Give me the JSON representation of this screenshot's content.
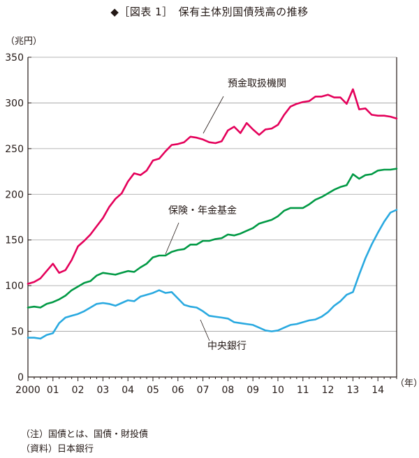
{
  "title": "◆［図表 1］　保有主体別国債残高の推移",
  "notes": [
    "（注）国債とは、国債・財投債",
    "（資料）日本銀行"
  ],
  "chart_data": {
    "type": "line",
    "ylabel": "（兆円）",
    "xlabel": "（年）",
    "ylim": [
      0,
      350
    ],
    "yticks": [
      0,
      50,
      100,
      150,
      200,
      250,
      300,
      350
    ],
    "xlim": [
      2000,
      2014.75
    ],
    "xticks": [
      {
        "value": 2000,
        "label": "2000"
      },
      {
        "value": 2001,
        "label": "01"
      },
      {
        "value": 2002,
        "label": "02"
      },
      {
        "value": 2003,
        "label": "03"
      },
      {
        "value": 2004,
        "label": "04"
      },
      {
        "value": 2005,
        "label": "05"
      },
      {
        "value": 2006,
        "label": "06"
      },
      {
        "value": 2007,
        "label": "07"
      },
      {
        "value": 2008,
        "label": "08"
      },
      {
        "value": 2009,
        "label": "09"
      },
      {
        "value": 2010,
        "label": "10"
      },
      {
        "value": 2011,
        "label": "11"
      },
      {
        "value": 2012,
        "label": "12"
      },
      {
        "value": 2013,
        "label": "13"
      },
      {
        "value": 2014,
        "label": "14"
      }
    ],
    "grid": "horizontal",
    "series": [
      {
        "name": "預金取扱機関",
        "color": "#e4005a",
        "label_style": "leader",
        "x": [
          2000,
          2000.25,
          2000.5,
          2000.75,
          2001,
          2001.25,
          2001.5,
          2001.75,
          2002,
          2002.25,
          2002.5,
          2002.75,
          2003,
          2003.25,
          2003.5,
          2003.75,
          2004,
          2004.25,
          2004.5,
          2004.75,
          2005,
          2005.25,
          2005.5,
          2005.75,
          2006,
          2006.25,
          2006.5,
          2006.75,
          2007,
          2007.25,
          2007.5,
          2007.75,
          2008,
          2008.25,
          2008.5,
          2008.75,
          2009,
          2009.25,
          2009.5,
          2009.75,
          2010,
          2010.25,
          2010.5,
          2010.75,
          2011,
          2011.25,
          2011.5,
          2011.75,
          2012,
          2012.25,
          2012.5,
          2012.75,
          2013,
          2013.25,
          2013.5,
          2013.75,
          2014,
          2014.25,
          2014.5,
          2014.75
        ],
        "values": [
          102,
          104,
          108,
          116,
          124,
          114,
          117,
          128,
          143,
          149,
          156,
          165,
          174,
          186,
          195,
          201,
          214,
          223,
          221,
          226,
          237,
          239,
          247,
          254,
          255,
          257,
          263,
          262,
          260,
          257,
          256,
          258,
          270,
          274,
          267,
          278,
          271,
          265,
          271,
          272,
          276,
          287,
          296,
          299,
          301,
          302,
          307,
          307,
          309,
          306,
          306,
          299,
          315,
          293,
          294,
          287,
          286,
          286,
          285,
          283
        ]
      },
      {
        "name": "保険・年金基金",
        "color": "#009944",
        "label_style": "leader",
        "x": [
          2000,
          2000.25,
          2000.5,
          2000.75,
          2001,
          2001.25,
          2001.5,
          2001.75,
          2002,
          2002.25,
          2002.5,
          2002.75,
          2003,
          2003.25,
          2003.5,
          2003.75,
          2004,
          2004.25,
          2004.5,
          2004.75,
          2005,
          2005.25,
          2005.5,
          2005.75,
          2006,
          2006.25,
          2006.5,
          2006.75,
          2007,
          2007.25,
          2007.5,
          2007.75,
          2008,
          2008.25,
          2008.5,
          2008.75,
          2009,
          2009.25,
          2009.5,
          2009.75,
          2010,
          2010.25,
          2010.5,
          2010.75,
          2011,
          2011.25,
          2011.5,
          2011.75,
          2012,
          2012.25,
          2012.5,
          2012.75,
          2013,
          2013.25,
          2013.5,
          2013.75,
          2014,
          2014.25,
          2014.5,
          2014.75
        ],
        "values": [
          76,
          77,
          76,
          80,
          82,
          85,
          89,
          95,
          99,
          103,
          105,
          111,
          114,
          113,
          112,
          114,
          116,
          115,
          120,
          124,
          131,
          133,
          133,
          137,
          139,
          140,
          145,
          145,
          149,
          149,
          151,
          152,
          156,
          155,
          157,
          160,
          163,
          168,
          170,
          172,
          176,
          182,
          185,
          185,
          185,
          189,
          194,
          197,
          201,
          205,
          208,
          210,
          222,
          217,
          221,
          222,
          226,
          227,
          227,
          228
        ]
      },
      {
        "name": "中央銀行",
        "color": "#29a9e0",
        "label_style": "leader",
        "x": [
          2000,
          2000.25,
          2000.5,
          2000.75,
          2001,
          2001.25,
          2001.5,
          2001.75,
          2002,
          2002.25,
          2002.5,
          2002.75,
          2003,
          2003.25,
          2003.5,
          2003.75,
          2004,
          2004.25,
          2004.5,
          2004.75,
          2005,
          2005.25,
          2005.5,
          2005.75,
          2006,
          2006.25,
          2006.5,
          2006.75,
          2007,
          2007.25,
          2007.5,
          2007.75,
          2008,
          2008.25,
          2008.5,
          2008.75,
          2009,
          2009.25,
          2009.5,
          2009.75,
          2010,
          2010.25,
          2010.5,
          2010.75,
          2011,
          2011.25,
          2011.5,
          2011.75,
          2012,
          2012.25,
          2012.5,
          2012.75,
          2013,
          2013.25,
          2013.5,
          2013.75,
          2014,
          2014.25,
          2014.5,
          2014.75
        ],
        "values": [
          43,
          43,
          42,
          46,
          48,
          59,
          65,
          67,
          69,
          72,
          76,
          80,
          81,
          80,
          78,
          81,
          84,
          83,
          88,
          90,
          92,
          95,
          92,
          93,
          86,
          79,
          77,
          76,
          72,
          67,
          66,
          65,
          64,
          60,
          59,
          58,
          57,
          54,
          51,
          50,
          51,
          54,
          57,
          58,
          60,
          62,
          63,
          66,
          71,
          78,
          83,
          90,
          93,
          112,
          130,
          145,
          158,
          170,
          180,
          183
        ]
      }
    ]
  }
}
